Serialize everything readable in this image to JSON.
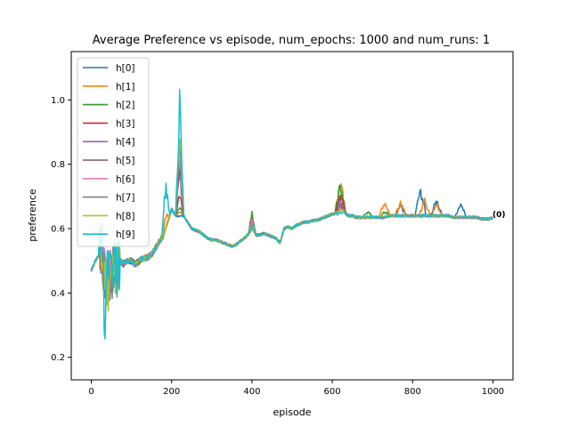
{
  "chart_data": {
    "type": "line",
    "title": "Average Preference vs episode, num_epochs: 1000 and num_runs: 1",
    "xlabel": "episode",
    "ylabel": "preference",
    "xlim": [
      -50,
      1050
    ],
    "ylim": [
      0.13,
      1.15
    ],
    "xticks": [
      0,
      200,
      400,
      600,
      800,
      1000
    ],
    "yticks": [
      0.2,
      0.4,
      0.6,
      0.8,
      1.0
    ],
    "legend_position": "top-left",
    "end_label": "(0)",
    "base_curve": {
      "x": [
        0,
        10,
        20,
        30,
        35,
        40,
        50,
        60,
        70,
        80,
        90,
        100,
        110,
        120,
        130,
        140,
        150,
        160,
        170,
        180,
        190,
        200,
        210,
        220,
        230,
        240,
        250,
        260,
        270,
        280,
        290,
        300,
        310,
        320,
        330,
        340,
        350,
        360,
        370,
        380,
        390,
        400,
        410,
        420,
        430,
        440,
        450,
        460,
        470,
        480,
        490,
        500,
        510,
        520,
        530,
        540,
        550,
        560,
        570,
        580,
        590,
        600,
        610,
        620,
        630,
        640,
        650,
        660,
        670,
        680,
        690,
        700,
        710,
        720,
        730,
        740,
        750,
        760,
        770,
        780,
        790,
        800,
        810,
        820,
        830,
        840,
        850,
        860,
        870,
        880,
        890,
        900,
        910,
        920,
        930,
        940,
        950,
        960,
        970,
        980,
        990,
        1000
      ],
      "y": [
        0.47,
        0.5,
        0.52,
        0.5,
        0.45,
        0.43,
        0.46,
        0.49,
        0.5,
        0.49,
        0.5,
        0.5,
        0.49,
        0.5,
        0.51,
        0.51,
        0.52,
        0.54,
        0.56,
        0.58,
        0.62,
        0.66,
        0.64,
        0.63,
        0.64,
        0.62,
        0.6,
        0.595,
        0.59,
        0.58,
        0.57,
        0.565,
        0.565,
        0.56,
        0.555,
        0.55,
        0.545,
        0.55,
        0.56,
        0.57,
        0.58,
        0.6,
        0.58,
        0.58,
        0.585,
        0.58,
        0.575,
        0.57,
        0.555,
        0.6,
        0.605,
        0.6,
        0.61,
        0.615,
        0.62,
        0.62,
        0.625,
        0.625,
        0.63,
        0.635,
        0.64,
        0.645,
        0.645,
        0.65,
        0.65,
        0.64,
        0.64,
        0.635,
        0.635,
        0.635,
        0.635,
        0.635,
        0.635,
        0.635,
        0.635,
        0.64,
        0.64,
        0.64,
        0.64,
        0.64,
        0.64,
        0.64,
        0.64,
        0.64,
        0.64,
        0.64,
        0.64,
        0.64,
        0.64,
        0.64,
        0.64,
        0.635,
        0.635,
        0.635,
        0.635,
        0.635,
        0.635,
        0.635,
        0.63,
        0.63,
        0.63,
        0.635
      ]
    },
    "series": [
      {
        "name": "h[0]",
        "color": "#1f77b4",
        "spikes": [
          {
            "x": 220,
            "h": 0.01
          },
          {
            "x": 620,
            "h": 0.08
          },
          {
            "x": 770,
            "h": 0.04
          },
          {
            "x": 820,
            "h": 0.1
          },
          {
            "x": 860,
            "h": 0.06
          },
          {
            "x": 920,
            "h": 0.05
          }
        ]
      },
      {
        "name": "h[1]",
        "color": "#ff7f0e",
        "spikes": [
          {
            "x": 185,
            "h": 0.05
          },
          {
            "x": 220,
            "h": 0.03
          },
          {
            "x": 620,
            "h": 0.12
          },
          {
            "x": 730,
            "h": 0.06
          },
          {
            "x": 770,
            "h": 0.05
          },
          {
            "x": 830,
            "h": 0.06
          },
          {
            "x": 860,
            "h": 0.04
          }
        ]
      },
      {
        "name": "h[2]",
        "color": "#2ca02c",
        "spikes": [
          {
            "x": 220,
            "h": 0.05
          },
          {
            "x": 400,
            "h": 0.06
          },
          {
            "x": 620,
            "h": 0.1
          },
          {
            "x": 690,
            "h": 0.02
          },
          {
            "x": 730,
            "h": 0.02
          }
        ]
      },
      {
        "name": "h[3]",
        "color": "#d62728",
        "spikes": [
          {
            "x": 220,
            "h": 0.1
          },
          {
            "x": 400,
            "h": 0.04
          },
          {
            "x": 620,
            "h": 0.06
          }
        ]
      },
      {
        "name": "h[4]",
        "color": "#9467bd",
        "spikes": [
          {
            "x": 220,
            "h": 0.2
          },
          {
            "x": 400,
            "h": 0.03
          },
          {
            "x": 620,
            "h": 0.04
          }
        ]
      },
      {
        "name": "h[5]",
        "color": "#8c564b",
        "spikes": [
          {
            "x": 220,
            "h": 0.23
          },
          {
            "x": 400,
            "h": 0.03
          },
          {
            "x": 620,
            "h": 0.03
          }
        ]
      },
      {
        "name": "h[6]",
        "color": "#e377c2",
        "spikes": [
          {
            "x": 220,
            "h": 0.24
          },
          {
            "x": 400,
            "h": 0.03
          },
          {
            "x": 620,
            "h": 0.02
          }
        ]
      },
      {
        "name": "h[7]",
        "color": "#7f7f7f",
        "spikes": [
          {
            "x": 220,
            "h": 0.28
          },
          {
            "x": 400,
            "h": 0.02
          },
          {
            "x": 620,
            "h": 0.02
          }
        ]
      },
      {
        "name": "h[8]",
        "color": "#bcbd22",
        "spikes": [
          {
            "x": 220,
            "h": 0.32
          },
          {
            "x": 400,
            "h": 0.02
          },
          {
            "x": 620,
            "h": 0.01
          }
        ]
      },
      {
        "name": "h[9]",
        "color": "#17becf",
        "spikes": [
          {
            "x": 185,
            "h": 0.18
          },
          {
            "x": 220,
            "h": 0.45
          },
          {
            "x": 400,
            "h": 0.01
          }
        ]
      }
    ]
  }
}
